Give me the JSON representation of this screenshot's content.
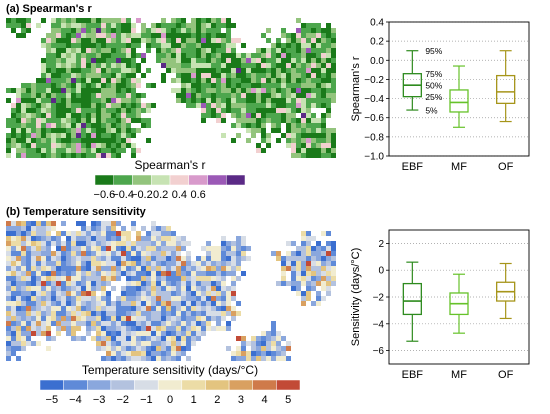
{
  "panels": {
    "a": {
      "title": "(a) Spearman's r"
    },
    "b": {
      "title": "(b) Temperature sensitivity"
    }
  },
  "colorbars": {
    "a": {
      "label": "Spearman's r",
      "ticks": [
        "−0.6",
        "−0.4",
        "−0.2",
        "0.2",
        "0.4",
        "0.6"
      ],
      "colors": [
        "#1a7a1a",
        "#4da64d",
        "#93c47d",
        "#c7e3b3",
        "#f2d0d0",
        "#d89acb",
        "#9b59b6",
        "#5b2a86"
      ]
    },
    "b": {
      "label": "Temperature sensitivity (days/°C)",
      "ticks": [
        "−5",
        "−4",
        "−3",
        "−2",
        "−1",
        "0",
        "1",
        "2",
        "3",
        "4",
        "5"
      ],
      "colors": [
        "#3b6fd0",
        "#5f8ad8",
        "#8aa7dd",
        "#b3c2df",
        "#d7dde6",
        "#f1ecd0",
        "#ecdca6",
        "#e3c47f",
        "#d9a060",
        "#cf7a4a",
        "#c24a36"
      ]
    }
  },
  "chart_data": [
    {
      "type": "box",
      "categories": [
        "EBF",
        "MF",
        "OF"
      ],
      "colors": [
        "#2e8b1e",
        "#66c22a",
        "#a6951a"
      ],
      "ylabel": "Spearman's r",
      "ylim": [
        -1.0,
        0.4
      ],
      "yticks": [
        "0.4",
        "0.2",
        "0.0",
        "−0.2",
        "−0.4",
        "−0.6",
        "−0.8",
        "−1.0"
      ],
      "ytick_values": [
        0.4,
        0.2,
        0.0,
        -0.2,
        -0.4,
        -0.6,
        -0.8,
        -1.0
      ],
      "grid": true,
      "boxes": [
        {
          "whisker_low": -0.52,
          "q1": -0.38,
          "median": -0.26,
          "q3": -0.14,
          "whisker_high": 0.1
        },
        {
          "whisker_low": -0.7,
          "q1": -0.54,
          "median": -0.44,
          "q3": -0.31,
          "whisker_high": -0.06
        },
        {
          "whisker_low": -0.64,
          "q1": -0.45,
          "median": -0.33,
          "q3": -0.16,
          "whisker_high": 0.1
        }
      ],
      "annotations": [
        "95%",
        "75%",
        "50%",
        "25%",
        "5%"
      ]
    },
    {
      "type": "box",
      "categories": [
        "EBF",
        "MF",
        "OF"
      ],
      "colors": [
        "#2e8b1e",
        "#66c22a",
        "#a6951a"
      ],
      "ylabel": "Sensitivity (days/°C)",
      "ylim": [
        -7,
        3
      ],
      "yticks": [
        "2",
        "0",
        "−2",
        "−4",
        "−6"
      ],
      "ytick_values": [
        2,
        0,
        -2,
        -4,
        -6
      ],
      "grid": true,
      "boxes": [
        {
          "whisker_low": -5.3,
          "q1": -3.3,
          "median": -2.3,
          "q3": -1.0,
          "whisker_high": 0.6
        },
        {
          "whisker_low": -4.7,
          "q1": -3.3,
          "median": -2.5,
          "q3": -1.7,
          "whisker_high": -0.3
        },
        {
          "whisker_low": -3.6,
          "q1": -2.3,
          "median": -1.6,
          "q3": -0.9,
          "whisker_high": 0.5
        }
      ]
    }
  ]
}
